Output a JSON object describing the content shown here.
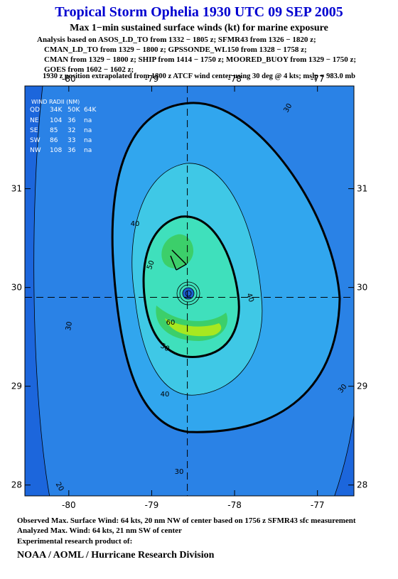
{
  "header": {
    "title": "Tropical Storm Ophelia 1930 UTC 09 SEP 2005",
    "subtitle": "Max 1−min sustained surface winds (kt) for marine exposure",
    "lines": [
      "Analysis based on  ASOS_LD_TO from 1332 − 1805 z;  SFMR43 from 1326 − 1820 z;",
      "CMAN_LD_TO from 1329 − 1800 z;  GPSSONDE_WL150 from 1328 − 1758 z;",
      "CMAN from 1329 − 1800 z;  SHIP from 1414 − 1750 z;  MOORED_BUOY from 1329 − 1750 z;",
      "GOES from 1602 − 1602 z;"
    ],
    "position_note": "1930 z position extrapolated from 1800 z ATCF wind center using 30 deg @ 4 kts; mslp = 983.0 mb"
  },
  "map": {
    "xlim": [
      -80.53,
      -76.56
    ],
    "ylim": [
      27.89,
      32.04
    ],
    "xticks": [
      -80,
      -79,
      -78,
      -77
    ],
    "yticks": [
      31,
      30,
      29,
      28
    ],
    "center": [
      -78.57,
      29.9
    ],
    "wind_radii": {
      "title": "WIND RADII (NM)",
      "header": [
        "QD",
        "34K",
        "50K",
        "64K"
      ],
      "rows": [
        [
          "NE",
          "104",
          "36",
          "na"
        ],
        [
          "SE",
          "85",
          "32",
          "na"
        ],
        [
          "SW",
          "86",
          "33",
          "na"
        ],
        [
          "NW",
          "108",
          "36",
          "na"
        ]
      ]
    },
    "contour_labels": [
      "30",
      "40",
      "50",
      "40",
      "60",
      "50",
      "30",
      "40",
      "30",
      "30",
      "20"
    ]
  },
  "footer": {
    "lines": [
      "Observed Max. Surface Wind: 64 kts, 20 nm NW of center based on 1756 z SFMR43 sfc measurement",
      "Analyzed Max. Wind: 64 kts, 21 nm SW of center",
      "Experimental research product of:"
    ],
    "org": "NOAA / AOML / Hurricane Research Division"
  }
}
